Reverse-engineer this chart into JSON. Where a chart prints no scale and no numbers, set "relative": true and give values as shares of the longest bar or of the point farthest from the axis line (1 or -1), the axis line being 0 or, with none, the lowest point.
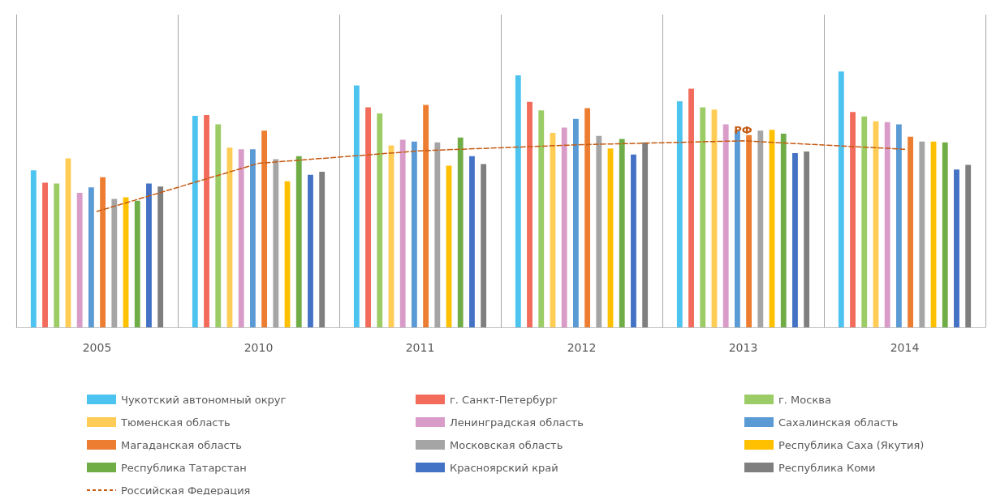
{
  "chart_data": {
    "type": "bar",
    "relative": true,
    "grid": "x",
    "legend": "bottom",
    "categories": [
      "2005",
      "2010",
      "2011",
      "2012",
      "2013",
      "2014"
    ],
    "annotations": [
      {
        "text": "РФ",
        "x": "2013",
        "y": 0.77
      }
    ],
    "series": [
      {
        "name": "Чукотский автономный округ",
        "color": "#4dc3f0",
        "values": [
          0.614,
          0.827,
          0.945,
          0.985,
          0.884,
          1
        ]
      },
      {
        "name": "г. Санкт-Петербург",
        "color": "#f26b5b",
        "values": [
          0.565,
          0.83,
          0.86,
          0.881,
          0.933,
          0.842
        ]
      },
      {
        "name": "г. Москва",
        "color": "#9ccc65",
        "values": [
          0.562,
          0.793,
          0.836,
          0.848,
          0.86,
          0.824
        ]
      },
      {
        "name": "Тюменская область",
        "color": "#ffcc55",
        "values": [
          0.66,
          0.702,
          0.711,
          0.76,
          0.851,
          0.805
        ]
      },
      {
        "name": "Ленинградская область",
        "color": "#d99cc8",
        "values": [
          0.526,
          0.696,
          0.733,
          0.781,
          0.793,
          0.802
        ]
      },
      {
        "name": "Сахалинская область",
        "color": "#5b9bd5",
        "values": [
          0.547,
          0.696,
          0.726,
          0.815,
          0.769,
          0.793
        ]
      },
      {
        "name": "Магаданская область",
        "color": "#ed7d31",
        "values": [
          0.587,
          0.769,
          0.869,
          0.857,
          0.751,
          0.745
        ]
      },
      {
        "name": "Московская область",
        "color": "#a5a5a5",
        "values": [
          0.502,
          0.657,
          0.723,
          0.748,
          0.769,
          0.726
        ]
      },
      {
        "name": "Республика Саха (Якутия)",
        "color": "#ffc000",
        "values": [
          0.508,
          0.571,
          0.632,
          0.699,
          0.772,
          0.726
        ]
      },
      {
        "name": "Республика Татарстан",
        "color": "#70ad47",
        "values": [
          0.495,
          0.669,
          0.742,
          0.736,
          0.757,
          0.723
        ]
      },
      {
        "name": "Красноярский край",
        "color": "#4472c4",
        "values": [
          0.562,
          0.596,
          0.669,
          0.675,
          0.681,
          0.617
        ]
      },
      {
        "name": "Республика Коми",
        "color": "#7f7f7f",
        "values": [
          0.55,
          0.608,
          0.638,
          0.723,
          0.687,
          0.635
        ]
      },
      {
        "name": "Российская Федерация",
        "type": "line",
        "color": "#c55a11",
        "line_style": "dashed",
        "marker": "none",
        "values": [
          0.453,
          0.641,
          0.69,
          0.714,
          0.729,
          0.696
        ]
      }
    ]
  }
}
